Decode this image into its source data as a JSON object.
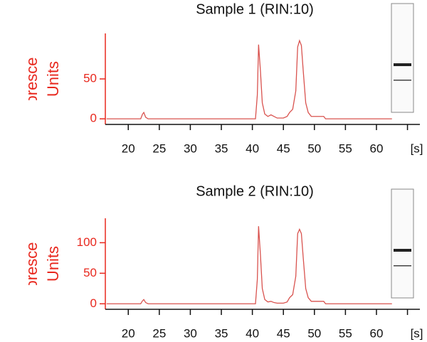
{
  "chart_data": [
    {
      "type": "line",
      "title": "Sample 1 (RIN:10)",
      "ylabel": "Fluorescence Units",
      "color": "#d9534f",
      "x": [
        16.5,
        22,
        22.3,
        22.5,
        22.8,
        23.2,
        40.5,
        40.8,
        41,
        41.3,
        41.6,
        42,
        42.5,
        43,
        43.5,
        44,
        45,
        45.6,
        46,
        46.5,
        47,
        47.3,
        47.6,
        47.9,
        48.2,
        48.6,
        49,
        49.5,
        51.5,
        51.8,
        62.5
      ],
      "values": [
        0,
        0,
        6,
        8,
        2,
        0,
        0,
        30,
        93,
        60,
        20,
        6,
        3,
        5,
        3,
        1,
        1,
        3,
        8,
        12,
        35,
        90,
        98,
        92,
        60,
        20,
        8,
        3,
        3,
        0,
        0
      ],
      "xlim": [
        16.3,
        67
      ],
      "xticks": [
        20,
        25,
        30,
        35,
        40,
        45,
        50,
        55,
        60,
        {
          "value": 65,
          "label": "[s]"
        }
      ],
      "ylim": [
        -7,
        107
      ],
      "yticks": [
        0,
        50
      ]
    },
    {
      "type": "line",
      "title": "Sample 2 (RIN:10)",
      "ylabel": "Fluorescence Units",
      "color": "#d9534f",
      "x": [
        16.5,
        22,
        22.3,
        22.5,
        22.8,
        23.2,
        40.5,
        40.8,
        41,
        41.3,
        41.6,
        42,
        42.5,
        43,
        43.5,
        44,
        45,
        45.6,
        46,
        46.5,
        47,
        47.3,
        47.6,
        47.9,
        48.2,
        48.6,
        49,
        49.5,
        51.5,
        51.8,
        62.5
      ],
      "values": [
        0,
        0,
        5,
        7,
        2,
        0,
        0,
        40,
        127,
        80,
        25,
        7,
        3,
        4,
        2,
        1,
        1,
        3,
        10,
        15,
        45,
        115,
        122,
        115,
        75,
        25,
        10,
        4,
        4,
        0,
        0
      ],
      "xlim": [
        16.3,
        67
      ],
      "xticks": [
        20,
        25,
        30,
        35,
        40,
        45,
        50,
        55,
        60,
        {
          "value": 65,
          "label": "[s]"
        }
      ],
      "ylim": [
        -9,
        140
      ],
      "yticks": [
        0,
        50,
        100
      ]
    }
  ]
}
